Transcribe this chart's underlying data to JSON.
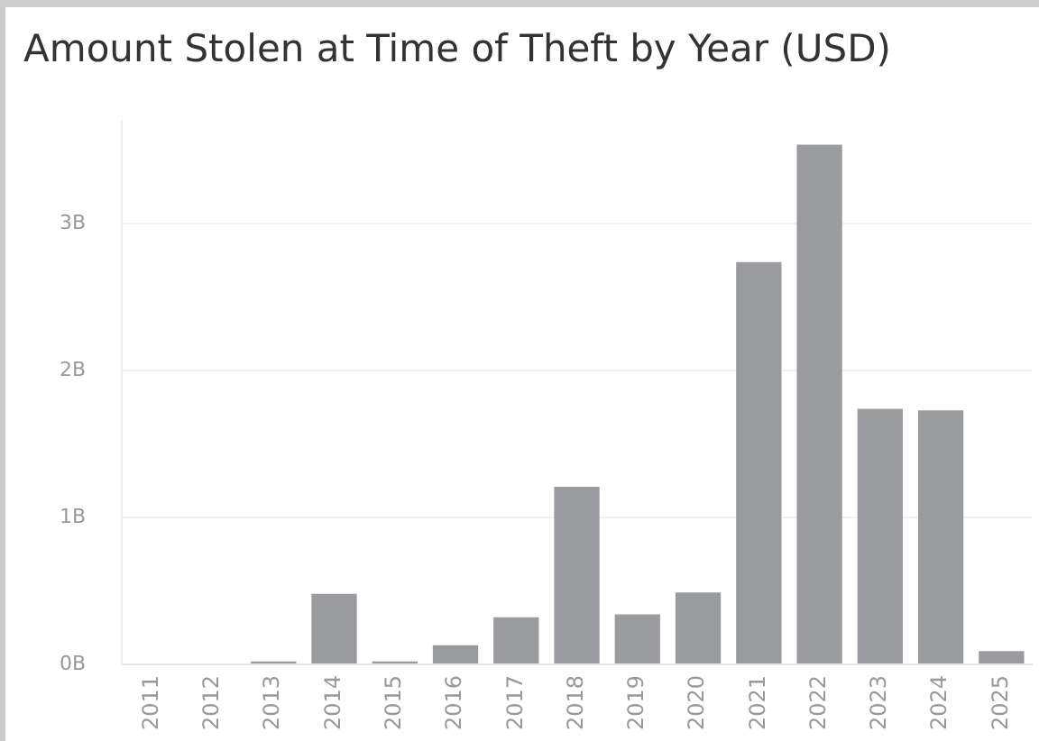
{
  "chart_data": {
    "type": "bar",
    "title": "Amount Stolen at Time of Theft by Year (USD)",
    "categories": [
      "2011",
      "2012",
      "2013",
      "2014",
      "2015",
      "2016",
      "2017",
      "2018",
      "2019",
      "2020",
      "2021",
      "2022",
      "2023",
      "2024",
      "2025"
    ],
    "values": [
      0,
      0,
      0.02,
      0.48,
      0.02,
      0.13,
      0.32,
      1.21,
      0.34,
      0.49,
      2.74,
      3.54,
      1.74,
      1.73,
      0.09
    ],
    "color": "#999b9e",
    "ylim": [
      0,
      3.7
    ],
    "yticks": [
      {
        "value": 0,
        "label": "0B"
      },
      {
        "value": 1,
        "label": "1B"
      },
      {
        "value": 2,
        "label": "2B"
      },
      {
        "value": 3,
        "label": "3B"
      }
    ],
    "grid": "y",
    "legend": false
  }
}
